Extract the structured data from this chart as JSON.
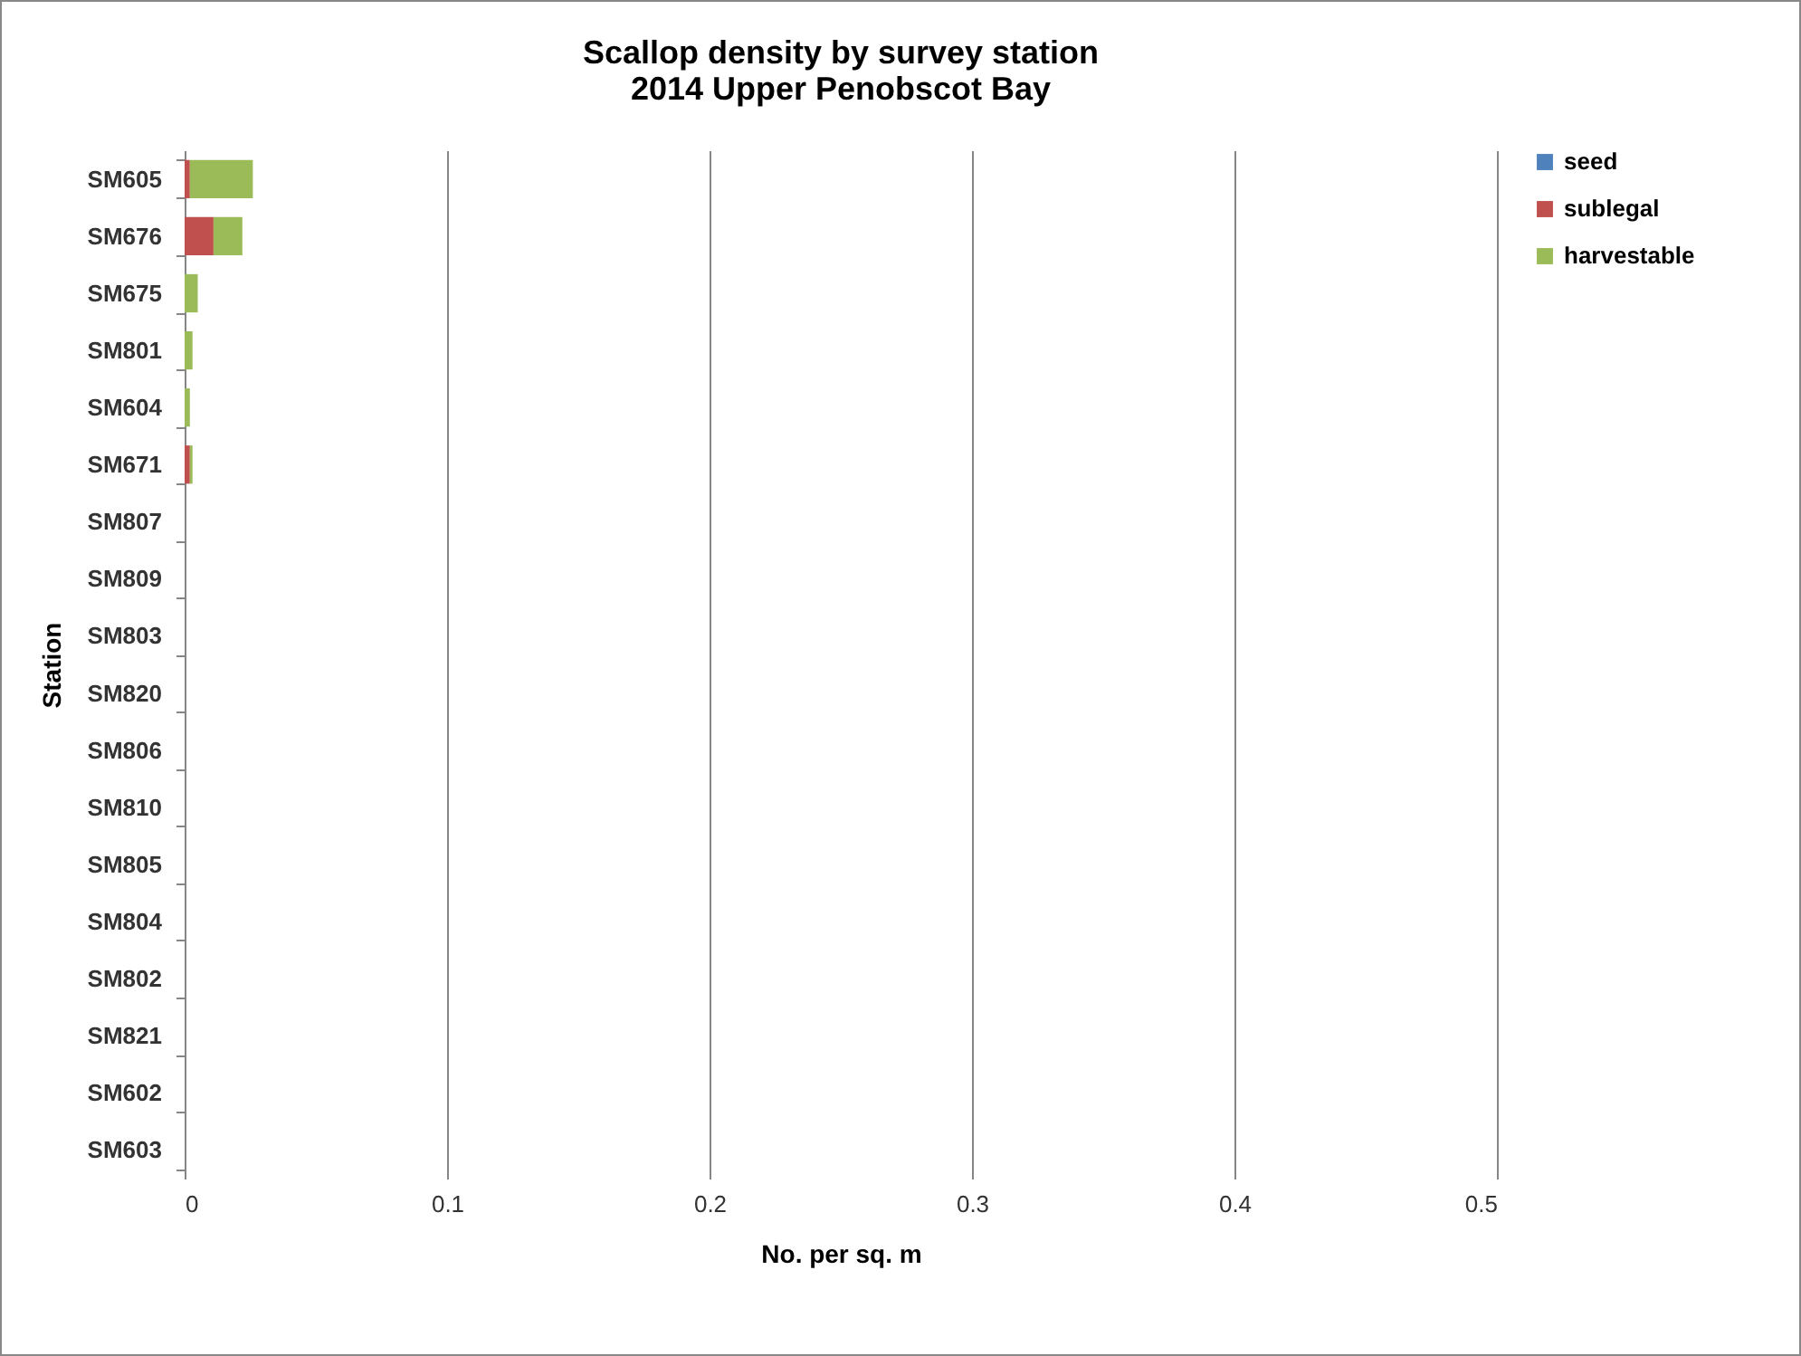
{
  "chart_data": {
    "type": "bar",
    "orientation": "horizontal",
    "stacked": true,
    "title": [
      "Scallop density by survey station",
      "2014 Upper Penobscot Bay"
    ],
    "xlabel": "No. per sq. m",
    "ylabel": "Station",
    "categories": [
      "SM605",
      "SM676",
      "SM675",
      "SM801",
      "SM604",
      "SM671",
      "SM807",
      "SM809",
      "SM803",
      "SM820",
      "SM806",
      "SM810",
      "SM805",
      "SM804",
      "SM802",
      "SM821",
      "SM602",
      "SM603"
    ],
    "series": [
      {
        "name": "seed",
        "color": "#4f81bd",
        "values": [
          0,
          0,
          0,
          0,
          0,
          0,
          0,
          0,
          0,
          0,
          0,
          0,
          0,
          0,
          0,
          0,
          0,
          0
        ]
      },
      {
        "name": "sublegal",
        "color": "#c0504d",
        "values": [
          0.002,
          0.011,
          0,
          0,
          0,
          0.002,
          0,
          0,
          0,
          0,
          0,
          0,
          0,
          0,
          0,
          0,
          0,
          0
        ]
      },
      {
        "name": "harvestable",
        "color": "#9bbb59",
        "values": [
          0.024,
          0.011,
          0.005,
          0.003,
          0.002,
          0.001,
          0,
          0,
          0,
          0,
          0,
          0,
          0,
          0,
          0,
          0,
          0,
          0
        ]
      }
    ],
    "xlim": [
      0,
      0.5
    ],
    "xticks": [
      {
        "value": 0,
        "label": "0"
      },
      0.1,
      0.2,
      0.3,
      0.4,
      0.5
    ],
    "grid": "x",
    "legend": "right"
  }
}
